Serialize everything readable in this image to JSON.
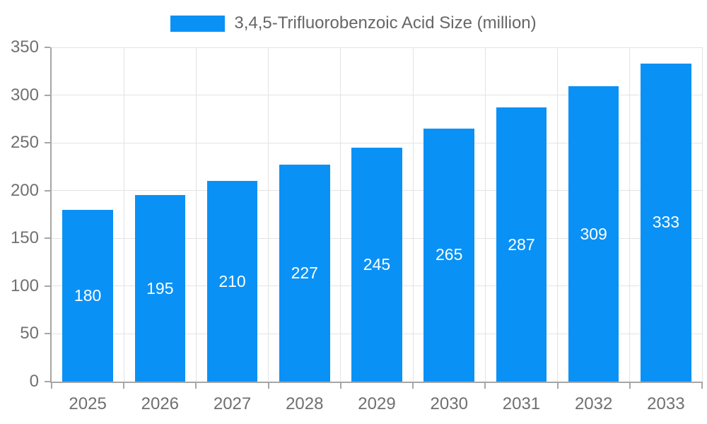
{
  "chart_data": {
    "type": "bar",
    "title": "3,4,5-Trifluorobenzoic Acid Size (million)",
    "categories": [
      "2025",
      "2026",
      "2027",
      "2028",
      "2029",
      "2030",
      "2031",
      "2032",
      "2033"
    ],
    "values": [
      180,
      195,
      210,
      227,
      245,
      265,
      287,
      309,
      333
    ],
    "xlabel": "",
    "ylabel": "",
    "ylim": [
      0,
      350
    ],
    "yticks": [
      0,
      50,
      100,
      150,
      200,
      250,
      300,
      350
    ],
    "grid": true,
    "legend_position": "top",
    "bar_value_labels": "centered-white"
  },
  "colors": {
    "bar": "#0a91f5",
    "bar_label": "#ffffff",
    "axis_line": "#a6a6a6",
    "gridline": "#e3e3e3",
    "axis_text": "#707070",
    "legend_text": "#666666",
    "background": "#ffffff"
  }
}
